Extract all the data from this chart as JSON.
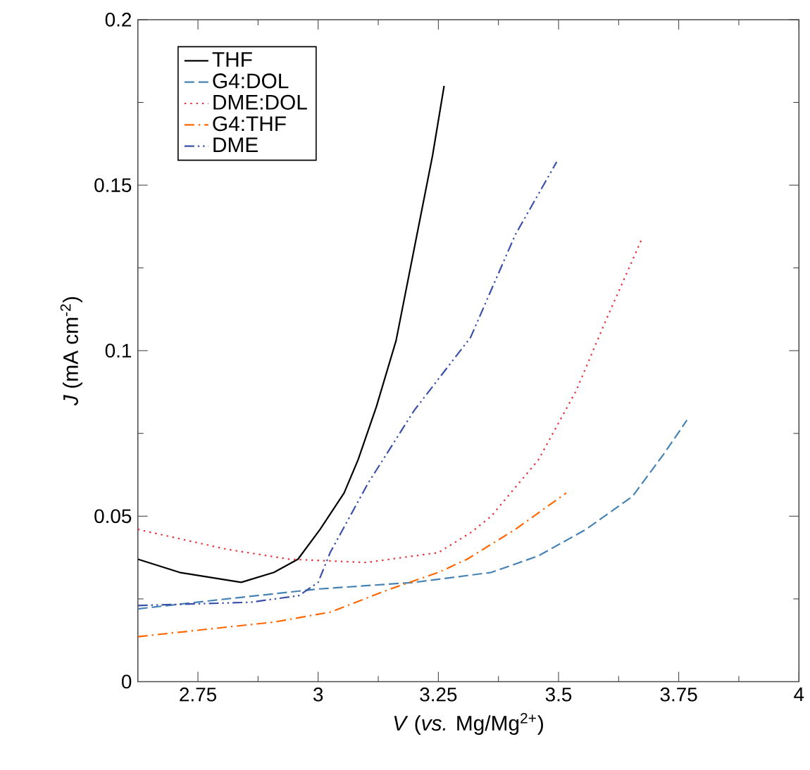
{
  "chart_data": {
    "type": "line",
    "xlabel": "*V* (*vs.* Mg/Mg$^{2+}$)",
    "ylabel": "*J* (mA cm$^{-2}$)",
    "xlim": [
      2.625,
      4
    ],
    "ylim": [
      0,
      0.2
    ],
    "xticks": [
      2.75,
      3,
      3.25,
      3.5,
      3.75,
      4
    ],
    "yticks": [
      0,
      0.05,
      0.1,
      0.15,
      0.2
    ],
    "grid": false,
    "legend": "top left",
    "marker": "none",
    "series": [
      {
        "name": "THF",
        "color": "#000000",
        "line_style": "solid",
        "x": [
          2.625,
          2.712,
          2.84,
          2.908,
          2.958,
          3.004,
          3.054,
          3.083,
          3.121,
          3.162,
          3.2,
          3.238,
          3.262
        ],
        "values": [
          0.037,
          0.033,
          0.03,
          0.033,
          0.037,
          0.046,
          0.057,
          0.067,
          0.083,
          0.103,
          0.131,
          0.159,
          0.18
        ]
      },
      {
        "name": "G4:DOL",
        "color": "#4682b4",
        "line_style": "dashed",
        "x": [
          2.625,
          2.81,
          3.0,
          3.2,
          3.36,
          3.458,
          3.557,
          3.654,
          3.72,
          3.767
        ],
        "values": [
          0.022,
          0.025,
          0.028,
          0.03,
          0.033,
          0.038,
          0.046,
          0.056,
          0.069,
          0.079
        ]
      },
      {
        "name": "DME:DOL",
        "color": "#e8303a",
        "line_style": "dotted",
        "x": [
          2.625,
          2.81,
          2.94,
          3.1,
          3.25,
          3.317,
          3.36,
          3.458,
          3.537,
          3.595,
          3.674
        ],
        "values": [
          0.046,
          0.04,
          0.037,
          0.036,
          0.039,
          0.045,
          0.05,
          0.067,
          0.088,
          0.108,
          0.134
        ]
      },
      {
        "name": "G4:THF",
        "color": "#ff6600",
        "line_style": "dashdot",
        "x": [
          2.625,
          2.908,
          3.025,
          3.15,
          3.25,
          3.31,
          3.41,
          3.516
        ],
        "values": [
          0.0136,
          0.018,
          0.021,
          0.028,
          0.033,
          0.037,
          0.046,
          0.057
        ]
      },
      {
        "name": "DME",
        "color": "#3a50a8",
        "line_style": "dashdotdot",
        "x": [
          2.625,
          2.86,
          2.96,
          3.0,
          3.025,
          3.104,
          3.2,
          3.317,
          3.41,
          3.496
        ],
        "values": [
          0.023,
          0.024,
          0.026,
          0.03,
          0.039,
          0.06,
          0.082,
          0.104,
          0.135,
          0.157
        ]
      }
    ]
  }
}
